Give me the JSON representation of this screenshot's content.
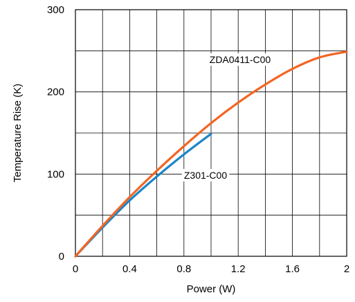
{
  "chart_data": {
    "type": "line",
    "title": "",
    "xlabel": "Power (W)",
    "ylabel": "Temperature Rise (K)",
    "xlim": [
      0,
      2
    ],
    "ylim": [
      0,
      300
    ],
    "x_ticks": [
      0,
      0.2,
      0.4,
      0.6,
      0.8,
      1.0,
      1.2,
      1.4,
      1.6,
      1.8,
      2.0
    ],
    "x_tick_labels": [
      "0",
      "",
      "0.4",
      "",
      "0.8",
      "",
      "1.2",
      "",
      "1.6",
      "",
      "2"
    ],
    "y_ticks": [
      0,
      50,
      100,
      150,
      200,
      250,
      300
    ],
    "y_tick_labels": [
      "0",
      "",
      "100",
      "",
      "200",
      "",
      "300"
    ],
    "grid": true,
    "legend": "none",
    "series": [
      {
        "name": "ZDA0411-C00",
        "color": "#f26522",
        "x": [
          0,
          0.2,
          0.4,
          0.6,
          0.8,
          1.0,
          1.2,
          1.4,
          1.6,
          1.8,
          2.0
        ],
        "y": [
          0,
          37,
          72,
          104,
          134,
          162,
          187,
          209,
          228,
          242,
          249
        ]
      },
      {
        "name": "Z301-C00",
        "color": "#1a86c8",
        "x": [
          0,
          0.2,
          0.4,
          0.6,
          0.8,
          1.0
        ],
        "y": [
          0,
          35,
          68,
          97,
          124,
          149
        ]
      }
    ],
    "annotations": [
      {
        "text": "ZDA0411-C00",
        "series": 0
      },
      {
        "text": "Z301-C00",
        "series": 1
      }
    ]
  }
}
